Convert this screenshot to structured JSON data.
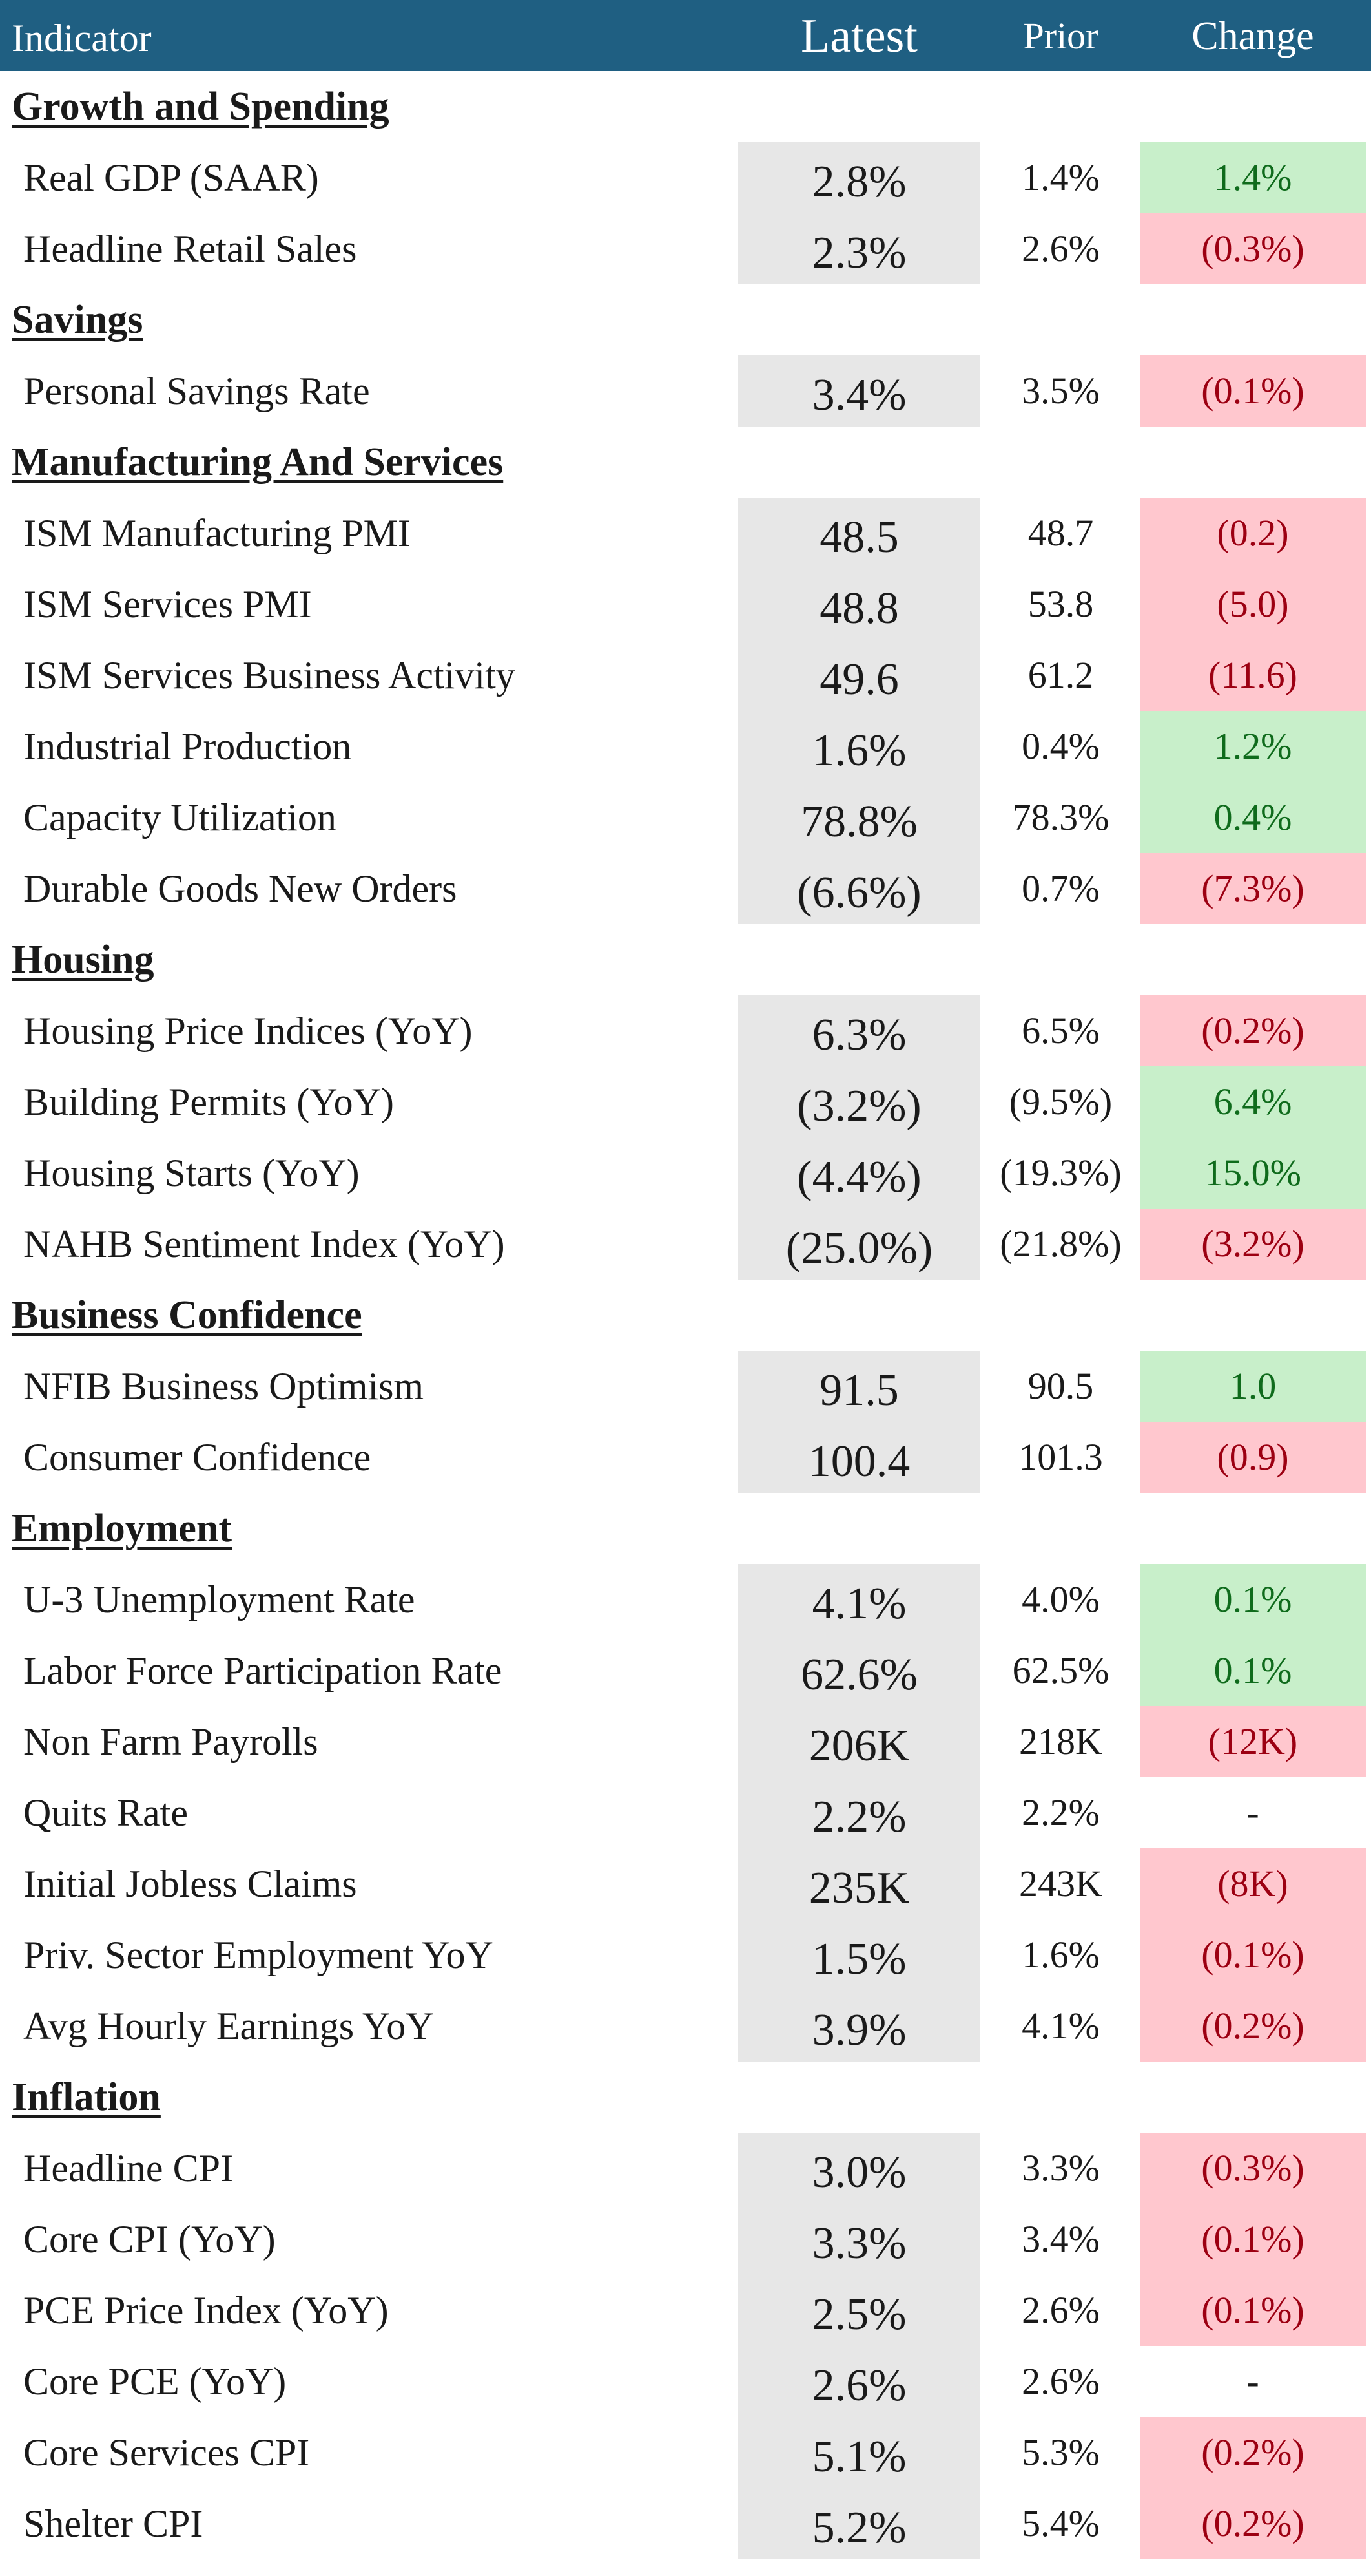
{
  "header": {
    "indicator": "Indicator",
    "latest": "Latest",
    "prior": "Prior",
    "change": "Change"
  },
  "colors": {
    "header_bg": "#1f5f82",
    "latest_bg": "#e7e7e7",
    "positive_bg": "#c8efca",
    "positive_text": "#0f6b1c",
    "negative_bg": "#ffc7ce",
    "negative_text": "#9c0012"
  },
  "sections": [
    {
      "title": "Growth and Spending",
      "rows": [
        {
          "label": "Real GDP (SAAR)",
          "latest": "2.8%",
          "prior": "1.4%",
          "change": "1.4%",
          "status": "positive"
        },
        {
          "label": "Headline Retail Sales",
          "latest": "2.3%",
          "prior": "2.6%",
          "change": "(0.3%)",
          "status": "negative"
        }
      ]
    },
    {
      "title": "Savings",
      "rows": [
        {
          "label": "Personal Savings Rate",
          "latest": "3.4%",
          "prior": "3.5%",
          "change": "(0.1%)",
          "status": "negative"
        }
      ]
    },
    {
      "title": "Manufacturing And Services",
      "rows": [
        {
          "label": "ISM Manufacturing PMI",
          "latest": "48.5",
          "prior": "48.7",
          "change": "(0.2)",
          "status": "negative"
        },
        {
          "label": "ISM Services PMI",
          "latest": "48.8",
          "prior": "53.8",
          "change": "(5.0)",
          "status": "negative"
        },
        {
          "label": "ISM Services Business Activity",
          "latest": "49.6",
          "prior": "61.2",
          "change": "(11.6)",
          "status": "negative"
        },
        {
          "label": "Industrial Production",
          "latest": "1.6%",
          "prior": "0.4%",
          "change": "1.2%",
          "status": "positive"
        },
        {
          "label": "Capacity Utilization",
          "latest": "78.8%",
          "prior": "78.3%",
          "change": "0.4%",
          "status": "positive"
        },
        {
          "label": "Durable Goods New Orders",
          "latest": "(6.6%)",
          "prior": "0.7%",
          "change": "(7.3%)",
          "status": "negative"
        }
      ]
    },
    {
      "title": "Housing",
      "rows": [
        {
          "label": "Housing Price Indices (YoY)",
          "latest": "6.3%",
          "prior": "6.5%",
          "change": "(0.2%)",
          "status": "negative"
        },
        {
          "label": "Building Permits (YoY)",
          "latest": "(3.2%)",
          "prior": "(9.5%)",
          "change": "6.4%",
          "status": "positive"
        },
        {
          "label": "Housing Starts (YoY)",
          "latest": "(4.4%)",
          "prior": "(19.3%)",
          "change": "15.0%",
          "status": "positive"
        },
        {
          "label": "NAHB Sentiment Index (YoY)",
          "latest": "(25.0%)",
          "prior": "(21.8%)",
          "change": "(3.2%)",
          "status": "negative"
        }
      ]
    },
    {
      "title": "Business Confidence",
      "rows": [
        {
          "label": "NFIB Business Optimism",
          "latest": "91.5",
          "prior": "90.5",
          "change": "1.0",
          "status": "positive"
        },
        {
          "label": "Consumer Confidence",
          "latest": "100.4",
          "prior": "101.3",
          "change": "(0.9)",
          "status": "negative"
        }
      ]
    },
    {
      "title": "Employment",
      "rows": [
        {
          "label": "U-3 Unemployment Rate",
          "latest": "4.1%",
          "prior": "4.0%",
          "change": "0.1%",
          "status": "positive"
        },
        {
          "label": "Labor Force Participation Rate",
          "latest": "62.6%",
          "prior": "62.5%",
          "change": "0.1%",
          "status": "positive"
        },
        {
          "label": "Non Farm Payrolls",
          "latest": "206K",
          "prior": "218K",
          "change": "(12K)",
          "status": "negative"
        },
        {
          "label": "Quits Rate",
          "latest": "2.2%",
          "prior": "2.2%",
          "change": "-",
          "status": "neutral"
        },
        {
          "label": "Initial Jobless Claims",
          "latest": "235K",
          "prior": "243K",
          "change": "(8K)",
          "status": "negative"
        },
        {
          "label": "Priv. Sector Employment YoY",
          "latest": "1.5%",
          "prior": "1.6%",
          "change": "(0.1%)",
          "status": "negative"
        },
        {
          "label": "Avg Hourly Earnings YoY",
          "latest": "3.9%",
          "prior": "4.1%",
          "change": "(0.2%)",
          "status": "negative"
        }
      ]
    },
    {
      "title": "Inflation",
      "rows": [
        {
          "label": "Headline CPI",
          "latest": "3.0%",
          "prior": "3.3%",
          "change": "(0.3%)",
          "status": "negative"
        },
        {
          "label": "Core CPI (YoY)",
          "latest": "3.3%",
          "prior": "3.4%",
          "change": "(0.1%)",
          "status": "negative"
        },
        {
          "label": "PCE Price Index (YoY)",
          "latest": "2.5%",
          "prior": "2.6%",
          "change": "(0.1%)",
          "status": "negative"
        },
        {
          "label": "Core PCE (YoY)",
          "latest": "2.6%",
          "prior": "2.6%",
          "change": "-",
          "status": "neutral"
        },
        {
          "label": "Core Services CPI",
          "latest": "5.1%",
          "prior": "5.3%",
          "change": "(0.2%)",
          "status": "negative"
        },
        {
          "label": "Shelter CPI",
          "latest": "5.2%",
          "prior": "5.4%",
          "change": "(0.2%)",
          "status": "negative"
        }
      ]
    }
  ]
}
